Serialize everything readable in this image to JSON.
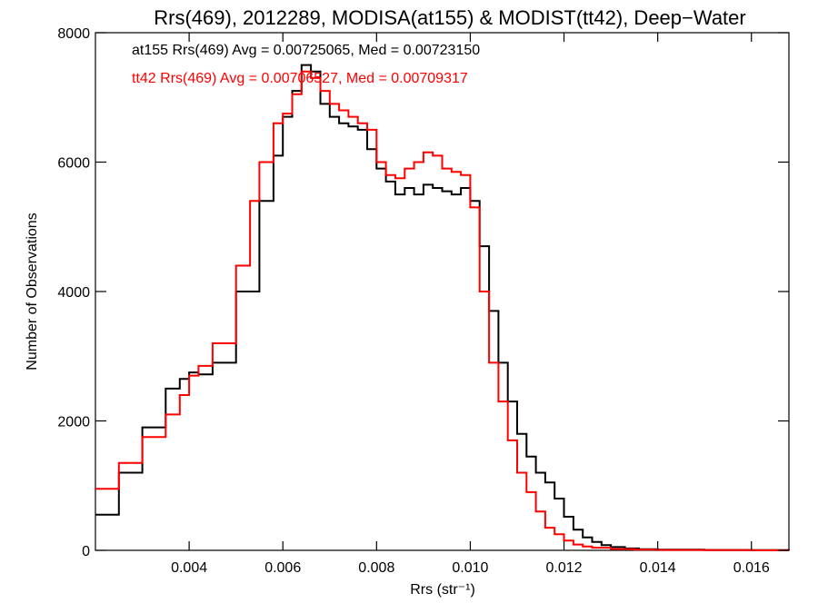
{
  "chart_data": {
    "type": "line",
    "title": "Rrs(469), 2012289, MODISA(at155) & MODIST(tt42), Deep−Water",
    "xlabel": "Rrs (str⁻¹)",
    "ylabel": "Number of Observations",
    "xlim": [
      0.002,
      0.0168
    ],
    "ylim": [
      0,
      8000
    ],
    "x_ticks": [
      0.004,
      0.006,
      0.008,
      0.01,
      0.012,
      0.014,
      0.016
    ],
    "x_tick_labels": [
      "0.004",
      "0.006",
      "0.008",
      "0.010",
      "0.012",
      "0.014",
      "0.016"
    ],
    "y_ticks": [
      0,
      2000,
      4000,
      6000,
      8000
    ],
    "y_tick_labels": [
      "0",
      "2000",
      "4000",
      "6000",
      "8000"
    ],
    "grid": false,
    "legend_position": "top-left",
    "annotations": [
      "at155 Rrs(469) Avg = 0.00725065, Med = 0.00723150",
      "tt42 Rrs(469) Avg = 0.00706527, Med = 0.00709317"
    ],
    "series": [
      {
        "color": "#000000",
        "x": [
          0.002,
          0.0025,
          0.003,
          0.0035,
          0.0038,
          0.004,
          0.0042,
          0.0045,
          0.005,
          0.0055,
          0.0058,
          0.006,
          0.0062,
          0.0064,
          0.0066,
          0.0068,
          0.007,
          0.0072,
          0.0074,
          0.0076,
          0.0078,
          0.008,
          0.0082,
          0.0084,
          0.0086,
          0.0088,
          0.009,
          0.0092,
          0.0094,
          0.0096,
          0.0098,
          0.01,
          0.0102,
          0.0104,
          0.0106,
          0.0108,
          0.011,
          0.0112,
          0.0114,
          0.0116,
          0.0118,
          0.012,
          0.0122,
          0.0124,
          0.0126,
          0.0128,
          0.013,
          0.0133,
          0.0136,
          0.014,
          0.015,
          0.016,
          0.0168
        ],
        "y": [
          550,
          1200,
          1900,
          2500,
          2650,
          2750,
          2720,
          2900,
          4000,
          5400,
          6100,
          6700,
          7100,
          7500,
          7400,
          6900,
          6700,
          6600,
          6550,
          6500,
          6200,
          5900,
          5700,
          5500,
          5600,
          5500,
          5650,
          5600,
          5550,
          5500,
          5600,
          5400,
          4700,
          3700,
          2900,
          2300,
          1800,
          1450,
          1200,
          1050,
          800,
          520,
          320,
          200,
          130,
          80,
          50,
          30,
          18,
          10,
          5,
          3,
          2
        ]
      },
      {
        "color": "#ff0000",
        "x": [
          0.002,
          0.0025,
          0.003,
          0.0035,
          0.0038,
          0.004,
          0.0042,
          0.0045,
          0.005,
          0.0053,
          0.0055,
          0.0058,
          0.006,
          0.0062,
          0.0064,
          0.0066,
          0.0068,
          0.007,
          0.0072,
          0.0074,
          0.0076,
          0.0078,
          0.008,
          0.0082,
          0.0084,
          0.0086,
          0.0088,
          0.009,
          0.0092,
          0.0094,
          0.0096,
          0.0098,
          0.01,
          0.0102,
          0.0104,
          0.0106,
          0.0108,
          0.011,
          0.0112,
          0.0114,
          0.0116,
          0.0118,
          0.012,
          0.0122,
          0.0124,
          0.0126,
          0.013,
          0.0135,
          0.014,
          0.015,
          0.016,
          0.0168
        ],
        "y": [
          950,
          1350,
          1750,
          2100,
          2400,
          2700,
          2850,
          3200,
          4400,
          5400,
          6000,
          6600,
          6750,
          7050,
          7400,
          7300,
          7100,
          6900,
          6800,
          6700,
          6600,
          6500,
          6000,
          5800,
          5750,
          5900,
          6000,
          6150,
          6100,
          5900,
          5850,
          5800,
          5300,
          4000,
          2900,
          2300,
          1700,
          1200,
          900,
          600,
          350,
          250,
          150,
          90,
          60,
          40,
          20,
          10,
          6,
          3,
          2,
          1
        ]
      }
    ]
  }
}
